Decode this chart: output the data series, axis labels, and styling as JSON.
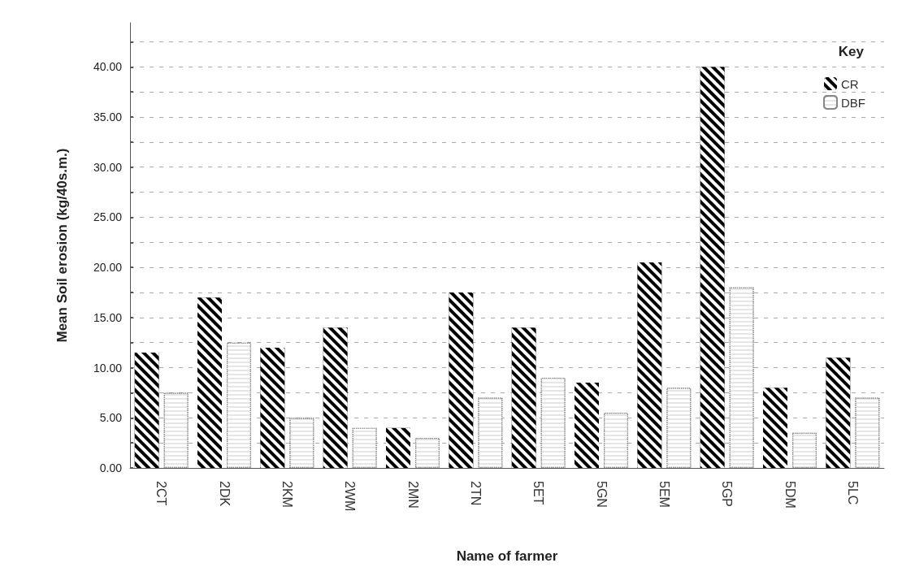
{
  "chart_data": {
    "type": "bar",
    "xlabel": "Name of farmer",
    "ylabel": "Mean Soil erosion (kg/40s.m.)",
    "legend_title": "Key",
    "legend": "top right",
    "grid": "y",
    "categories": [
      "2CT",
      "2DK",
      "2KM",
      "2WM",
      "2MN",
      "2TN",
      "5ET",
      "5GN",
      "5EM",
      "5GP",
      "5DM",
      "5LC"
    ],
    "series": [
      {
        "name": "CR",
        "color": "#000000",
        "values": [
          11.5,
          17,
          12,
          14,
          4,
          17.5,
          14,
          8.5,
          20.5,
          40,
          8,
          11
        ]
      },
      {
        "name": "DBF",
        "color": "#ffffff",
        "values": [
          7.5,
          12.5,
          5,
          4,
          3,
          7,
          9,
          5.5,
          8,
          18,
          3.5,
          7
        ]
      }
    ],
    "ylim": [
      0,
      44.4
    ],
    "yticks": [
      {
        "value": 0,
        "label": "0.00"
      },
      {
        "value": 2.5,
        "label": null
      },
      {
        "value": 5,
        "label": "5.00"
      },
      {
        "value": 7.5,
        "label": null
      },
      {
        "value": 10,
        "label": "10.00"
      },
      {
        "value": 12.5,
        "label": null
      },
      {
        "value": 15,
        "label": "15.00"
      },
      {
        "value": 17.5,
        "label": null
      },
      {
        "value": 20,
        "label": "20.00"
      },
      {
        "value": 22.5,
        "label": null
      },
      {
        "value": 25,
        "label": "25.00"
      },
      {
        "value": 27.5,
        "label": null
      },
      {
        "value": 30,
        "label": "30.00"
      },
      {
        "value": 32.5,
        "label": null
      },
      {
        "value": 35,
        "label": "35.00"
      },
      {
        "value": 37.5,
        "label": null
      },
      {
        "value": 40,
        "label": "40.00"
      },
      {
        "value": 42.5,
        "label": null
      }
    ]
  }
}
